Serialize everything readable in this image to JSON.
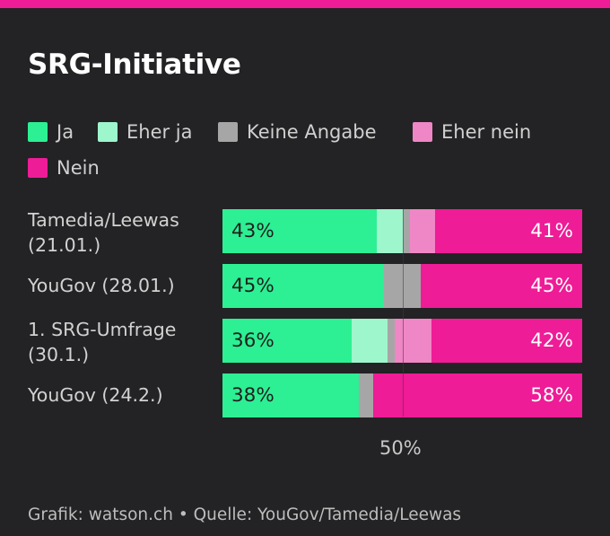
{
  "title": "SRG-Initiative",
  "legend": [
    {
      "label": "Ja",
      "color": "#2cf093"
    },
    {
      "label": "Eher ja",
      "color": "#9ef6cc"
    },
    {
      "label": "Keine Angabe",
      "color": "#a6a6a6"
    },
    {
      "label": "Eher nein",
      "color": "#ef86c5"
    },
    {
      "label": "Nein",
      "color": "#ee1c96"
    }
  ],
  "chart_data": {
    "type": "bar",
    "orientation": "horizontal-stacked-100",
    "categories": [
      "Tamedia/Leewas\n(21.01.)",
      "YouGov (28.01.)",
      "1. SRG-Umfrage\n(30.1.)",
      "YouGov (24.2.)"
    ],
    "series": [
      {
        "name": "Ja",
        "values": [
          43,
          45,
          36,
          38
        ]
      },
      {
        "name": "Eher ja",
        "values": [
          7,
          0,
          10,
          0
        ]
      },
      {
        "name": "Keine Angabe",
        "values": [
          2,
          10,
          2,
          4
        ]
      },
      {
        "name": "Eher nein",
        "values": [
          7,
          0,
          10,
          0
        ]
      },
      {
        "name": "Nein",
        "values": [
          41,
          45,
          42,
          58
        ]
      }
    ],
    "left_labels": [
      "43%",
      "45%",
      "36%",
      "38%"
    ],
    "right_labels": [
      "41%",
      "45%",
      "42%",
      "58%"
    ],
    "reference_label": "50%",
    "xlim": [
      0,
      100
    ]
  },
  "footer": "Grafik: watson.ch • Quelle: YouGov/Tamedia/Leewas"
}
